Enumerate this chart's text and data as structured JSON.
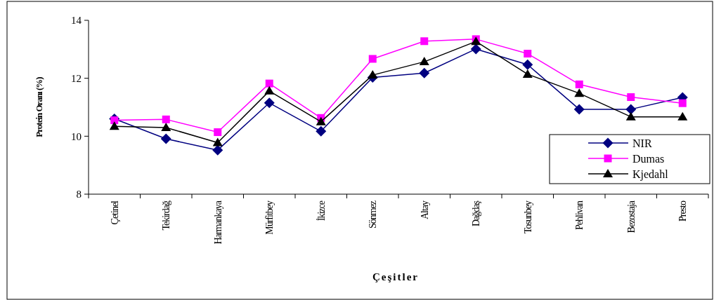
{
  "chart_data": {
    "type": "line",
    "xlabel": "Çeşitler",
    "ylabel": "Protein Oranı (%)",
    "categories": [
      "Çetinel",
      "Tekirdağ",
      "Harmankaya",
      "Mürfitbey",
      "İkizce",
      "Sönmez",
      "Altay",
      "Dağdaş",
      "Tosunbey",
      "Pehlivan",
      "Bezostaja",
      "Presto"
    ],
    "ylim": [
      8,
      14
    ],
    "yticks": [
      8,
      10,
      12,
      14
    ],
    "grid": false,
    "legend": "right",
    "line_style": "solid",
    "series": [
      {
        "name": "NIR",
        "color": "#000080",
        "marker": "diamond",
        "values": [
          10.6,
          9.91,
          9.52,
          11.15,
          10.17,
          12.03,
          12.18,
          13.01,
          12.47,
          10.93,
          10.93,
          11.34
        ]
      },
      {
        "name": "Dumas",
        "color": "#ff00ff",
        "marker": "square",
        "values": [
          10.55,
          10.58,
          10.14,
          11.82,
          10.63,
          12.67,
          13.28,
          13.35,
          12.85,
          11.79,
          11.35,
          11.14
        ]
      },
      {
        "name": "Kjedahl",
        "color": "#000000",
        "marker": "triangle",
        "values": [
          10.34,
          10.3,
          9.78,
          11.56,
          10.5,
          12.11,
          12.57,
          13.27,
          12.14,
          11.48,
          10.67,
          10.67
        ]
      }
    ]
  }
}
